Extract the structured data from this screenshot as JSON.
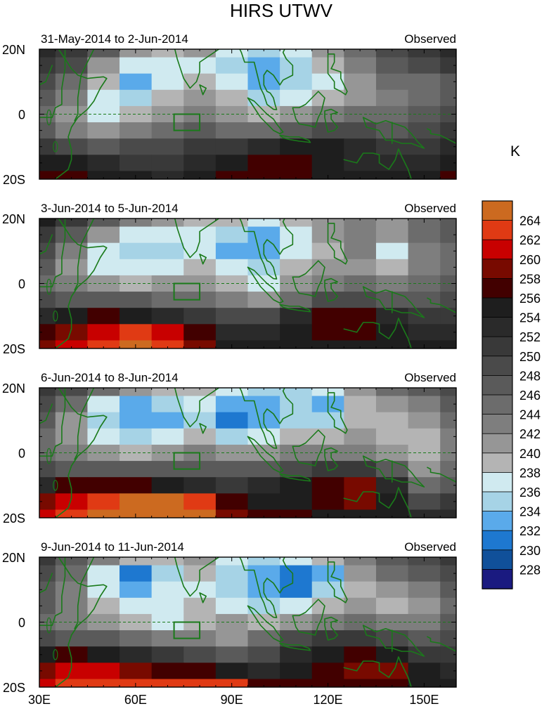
{
  "figure": {
    "title": "HIRS UTWV"
  },
  "colorbar": {
    "unit": "K",
    "levels": [
      264,
      262,
      260,
      258,
      256,
      254,
      252,
      250,
      248,
      246,
      244,
      242,
      240,
      238,
      236,
      234,
      232,
      230,
      228
    ],
    "colors": [
      "#cc6a20",
      "#e03a14",
      "#c80000",
      "#780a00",
      "#420000",
      "#1e1e1e",
      "#2a2a2a",
      "#393939",
      "#4a4a4a",
      "#5a5a5a",
      "#6c6c6c",
      "#7e7e7e",
      "#969696",
      "#b4b4b4",
      "#d0eaf0",
      "#a6d3e6",
      "#5aaaea",
      "#1e78d0",
      "#10509a",
      "#1a1a80"
    ]
  },
  "axes": {
    "x_ticks": [
      "30E",
      "60E",
      "90E",
      "120E",
      "150E"
    ],
    "y_ticks": [
      "20N",
      "0",
      "20S"
    ],
    "equator_label": "0"
  },
  "chart_data": [
    {
      "type": "heatmap",
      "title": "31-May-2014 to 2-Jun-2014",
      "right_title": "Observed",
      "xlim": [
        30,
        160
      ],
      "ylim": [
        -20,
        20
      ],
      "lon": [
        30,
        40,
        50,
        60,
        70,
        80,
        90,
        100,
        110,
        120,
        130,
        140,
        150,
        160
      ],
      "lat": [
        20,
        15,
        10,
        5,
        0,
        -5,
        -10,
        -15,
        -20
      ],
      "values": [
        [
          252,
          250,
          246,
          240,
          238,
          240,
          236,
          234,
          236,
          240,
          244,
          248,
          250,
          252
        ],
        [
          250,
          248,
          240,
          236,
          236,
          236,
          234,
          232,
          234,
          238,
          242,
          246,
          248,
          250
        ],
        [
          248,
          244,
          238,
          232,
          236,
          238,
          236,
          232,
          234,
          236,
          240,
          244,
          244,
          246
        ],
        [
          246,
          242,
          236,
          234,
          238,
          240,
          238,
          234,
          236,
          238,
          240,
          242,
          244,
          246
        ],
        [
          244,
          240,
          236,
          238,
          240,
          242,
          240,
          238,
          240,
          242,
          244,
          244,
          246,
          248
        ],
        [
          246,
          242,
          240,
          242,
          244,
          246,
          244,
          244,
          246,
          248,
          248,
          246,
          248,
          250
        ],
        [
          250,
          248,
          246,
          248,
          248,
          250,
          250,
          252,
          254,
          254,
          252,
          250,
          250,
          252
        ],
        [
          254,
          254,
          252,
          250,
          250,
          252,
          254,
          256,
          256,
          254,
          252,
          252,
          252,
          254
        ],
        [
          256,
          256,
          254,
          254,
          252,
          254,
          256,
          256,
          256,
          254,
          254,
          254,
          254,
          256
        ]
      ]
    },
    {
      "type": "heatmap",
      "title": "3-Jun-2014 to 5-Jun-2014",
      "right_title": "Observed",
      "xlim": [
        30,
        160
      ],
      "ylim": [
        -20,
        20
      ],
      "lon": [
        30,
        40,
        50,
        60,
        70,
        80,
        90,
        100,
        110,
        120,
        130,
        140,
        150,
        160
      ],
      "lat": [
        20,
        15,
        10,
        5,
        0,
        -5,
        -10,
        -15,
        -20
      ],
      "values": [
        [
          254,
          250,
          246,
          242,
          240,
          238,
          238,
          236,
          238,
          240,
          242,
          240,
          244,
          246
        ],
        [
          250,
          246,
          240,
          236,
          236,
          236,
          234,
          232,
          236,
          240,
          242,
          240,
          244,
          246
        ],
        [
          248,
          242,
          236,
          234,
          234,
          236,
          232,
          232,
          236,
          238,
          242,
          236,
          242,
          244
        ],
        [
          246,
          240,
          236,
          236,
          236,
          238,
          236,
          234,
          238,
          240,
          240,
          238,
          242,
          244
        ],
        [
          244,
          242,
          240,
          238,
          240,
          240,
          238,
          236,
          240,
          242,
          244,
          242,
          244,
          246
        ],
        [
          248,
          246,
          246,
          246,
          244,
          244,
          242,
          240,
          244,
          248,
          248,
          246,
          246,
          248
        ],
        [
          252,
          254,
          256,
          254,
          252,
          250,
          248,
          248,
          252,
          256,
          256,
          252,
          250,
          250
        ],
        [
          256,
          258,
          260,
          262,
          260,
          256,
          252,
          252,
          254,
          256,
          256,
          254,
          252,
          252
        ],
        [
          258,
          260,
          262,
          264,
          262,
          258,
          254,
          254,
          254,
          254,
          254,
          254,
          254,
          254
        ]
      ]
    },
    {
      "type": "heatmap",
      "title": "6-Jun-2014 to 8-Jun-2014",
      "right_title": "Observed",
      "xlim": [
        30,
        160
      ],
      "ylim": [
        -20,
        20
      ],
      "lon": [
        30,
        40,
        50,
        60,
        70,
        80,
        90,
        100,
        110,
        120,
        130,
        140,
        150,
        160
      ],
      "lat": [
        20,
        15,
        10,
        5,
        0,
        -5,
        -10,
        -15,
        -20
      ],
      "values": [
        [
          250,
          248,
          244,
          240,
          238,
          238,
          236,
          234,
          234,
          236,
          240,
          244,
          246,
          248
        ],
        [
          248,
          244,
          236,
          232,
          234,
          236,
          232,
          232,
          234,
          232,
          238,
          240,
          242,
          246
        ],
        [
          246,
          240,
          234,
          232,
          232,
          234,
          230,
          232,
          234,
          234,
          238,
          238,
          240,
          244
        ],
        [
          244,
          240,
          236,
          234,
          236,
          238,
          234,
          236,
          238,
          238,
          240,
          238,
          238,
          242
        ],
        [
          244,
          242,
          240,
          238,
          240,
          242,
          240,
          240,
          242,
          242,
          242,
          240,
          238,
          242
        ],
        [
          248,
          246,
          246,
          246,
          246,
          246,
          246,
          246,
          248,
          250,
          250,
          246,
          240,
          244
        ],
        [
          252,
          256,
          256,
          256,
          254,
          252,
          250,
          252,
          254,
          256,
          258,
          252,
          244,
          246
        ],
        [
          258,
          260,
          262,
          264,
          264,
          262,
          256,
          254,
          254,
          256,
          258,
          254,
          248,
          250
        ],
        [
          260,
          262,
          264,
          264,
          264,
          264,
          258,
          256,
          256,
          254,
          254,
          254,
          252,
          252
        ]
      ]
    },
    {
      "type": "heatmap",
      "title": "9-Jun-2014 to 11-Jun-2014",
      "right_title": "Observed",
      "xlim": [
        30,
        160
      ],
      "ylim": [
        -20,
        20
      ],
      "lon": [
        30,
        40,
        50,
        60,
        70,
        80,
        90,
        100,
        110,
        120,
        130,
        140,
        150,
        160
      ],
      "lat": [
        20,
        15,
        10,
        5,
        0,
        -5,
        -10,
        -15,
        -20
      ],
      "values": [
        [
          250,
          246,
          242,
          238,
          238,
          240,
          236,
          234,
          236,
          238,
          242,
          246,
          248,
          250
        ],
        [
          248,
          244,
          236,
          230,
          234,
          238,
          234,
          232,
          230,
          232,
          240,
          244,
          246,
          248
        ],
        [
          246,
          242,
          236,
          232,
          236,
          236,
          234,
          232,
          230,
          234,
          238,
          240,
          242,
          246
        ],
        [
          246,
          242,
          238,
          236,
          236,
          238,
          236,
          234,
          236,
          238,
          240,
          238,
          240,
          244
        ],
        [
          244,
          242,
          240,
          238,
          236,
          238,
          240,
          238,
          240,
          242,
          244,
          242,
          242,
          246
        ],
        [
          248,
          246,
          246,
          244,
          242,
          242,
          240,
          244,
          248,
          250,
          250,
          248,
          246,
          248
        ],
        [
          254,
          256,
          254,
          252,
          250,
          248,
          246,
          248,
          252,
          254,
          256,
          254,
          250,
          250
        ],
        [
          258,
          260,
          260,
          258,
          256,
          256,
          254,
          252,
          254,
          256,
          258,
          258,
          254,
          252
        ],
        [
          260,
          262,
          262,
          262,
          262,
          262,
          262,
          256,
          256,
          256,
          256,
          256,
          254,
          254
        ]
      ]
    }
  ]
}
